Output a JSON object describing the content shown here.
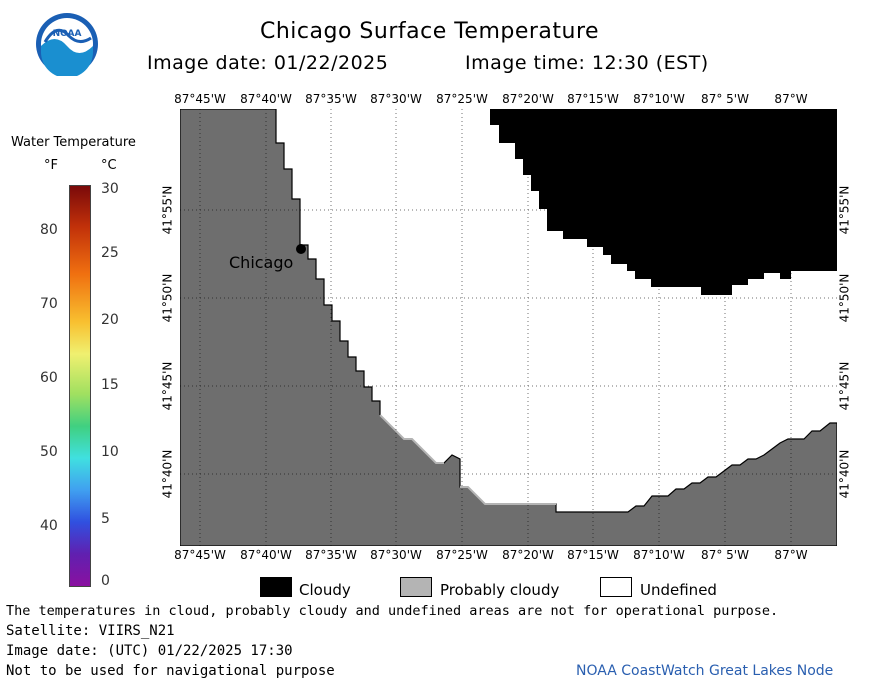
{
  "header": {
    "title": "Chicago Surface Temperature",
    "image_date": "Image date: 01/22/2025",
    "image_time": "Image time: 12:30 (EST)"
  },
  "colorbar": {
    "title": "Water Temperature",
    "unit_f": "°F",
    "unit_c": "°C",
    "f_ticks": [
      "80",
      "70",
      "60",
      "50",
      "40"
    ],
    "c_ticks": [
      "30",
      "25",
      "20",
      "15",
      "10",
      "5",
      "0"
    ]
  },
  "map": {
    "lon_labels": [
      "87°45'W",
      "87°40'W",
      "87°35'W",
      "87°30'W",
      "87°25'W",
      "87°20'W",
      "87°15'W",
      "87°10'W",
      "87° 5'W",
      "87°W"
    ],
    "lat_labels": [
      "41°55'N",
      "41°50'N",
      "41°45'N",
      "41°40'N"
    ],
    "city_label": "Chicago"
  },
  "legend": {
    "cloudy": "Cloudy",
    "probably_cloudy": "Probably cloudy",
    "undefined": "Undefined"
  },
  "footer": {
    "disclaimer": "The temperatures in cloud, probably cloudy and undefined areas are not for operational purpose.",
    "satellite": "Satellite: VIIRS_N21",
    "utc_date": "Image date: (UTC) 01/22/2025  17:30",
    "nav_warning": "Not to be used for navigational purpose",
    "credit": "NOAA CoastWatch Great Lakes Node"
  },
  "colors": {
    "land": "#6e6e6e",
    "cloudy": "#000000",
    "probably_cloudy": "#b4b4b4",
    "undefined": "#ffffff",
    "credit": "#2a5fb0"
  }
}
